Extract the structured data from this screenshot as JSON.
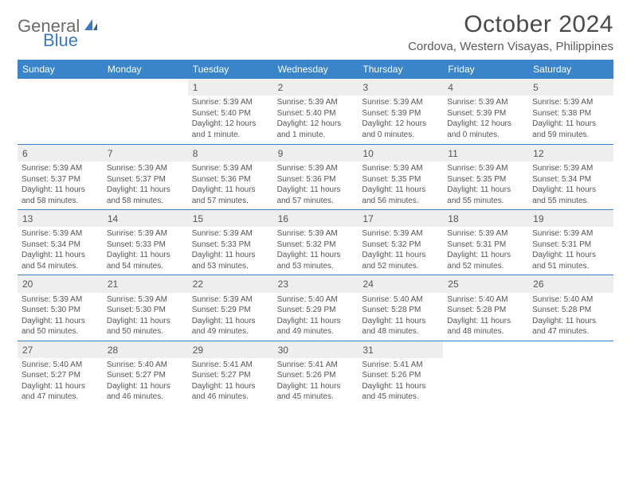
{
  "logo": {
    "general": "General",
    "blue": "Blue"
  },
  "title": "October 2024",
  "location": "Cordova, Western Visayas, Philippines",
  "colors": {
    "header_bg": "#3a85c9",
    "header_text": "#ffffff",
    "week_border": "#3a85c9",
    "daynum_bg": "#eeeeee",
    "body_text": "#555555",
    "logo_gray": "#6a6a6a",
    "logo_blue": "#3a7bbf"
  },
  "day_names": [
    "Sunday",
    "Monday",
    "Tuesday",
    "Wednesday",
    "Thursday",
    "Friday",
    "Saturday"
  ],
  "weeks": [
    [
      {
        "day": "",
        "sunrise": "",
        "sunset": "",
        "daylight": ""
      },
      {
        "day": "",
        "sunrise": "",
        "sunset": "",
        "daylight": ""
      },
      {
        "day": "1",
        "sunrise": "Sunrise: 5:39 AM",
        "sunset": "Sunset: 5:40 PM",
        "daylight": "Daylight: 12 hours and 1 minute."
      },
      {
        "day": "2",
        "sunrise": "Sunrise: 5:39 AM",
        "sunset": "Sunset: 5:40 PM",
        "daylight": "Daylight: 12 hours and 1 minute."
      },
      {
        "day": "3",
        "sunrise": "Sunrise: 5:39 AM",
        "sunset": "Sunset: 5:39 PM",
        "daylight": "Daylight: 12 hours and 0 minutes."
      },
      {
        "day": "4",
        "sunrise": "Sunrise: 5:39 AM",
        "sunset": "Sunset: 5:39 PM",
        "daylight": "Daylight: 12 hours and 0 minutes."
      },
      {
        "day": "5",
        "sunrise": "Sunrise: 5:39 AM",
        "sunset": "Sunset: 5:38 PM",
        "daylight": "Daylight: 11 hours and 59 minutes."
      }
    ],
    [
      {
        "day": "6",
        "sunrise": "Sunrise: 5:39 AM",
        "sunset": "Sunset: 5:37 PM",
        "daylight": "Daylight: 11 hours and 58 minutes."
      },
      {
        "day": "7",
        "sunrise": "Sunrise: 5:39 AM",
        "sunset": "Sunset: 5:37 PM",
        "daylight": "Daylight: 11 hours and 58 minutes."
      },
      {
        "day": "8",
        "sunrise": "Sunrise: 5:39 AM",
        "sunset": "Sunset: 5:36 PM",
        "daylight": "Daylight: 11 hours and 57 minutes."
      },
      {
        "day": "9",
        "sunrise": "Sunrise: 5:39 AM",
        "sunset": "Sunset: 5:36 PM",
        "daylight": "Daylight: 11 hours and 57 minutes."
      },
      {
        "day": "10",
        "sunrise": "Sunrise: 5:39 AM",
        "sunset": "Sunset: 5:35 PM",
        "daylight": "Daylight: 11 hours and 56 minutes."
      },
      {
        "day": "11",
        "sunrise": "Sunrise: 5:39 AM",
        "sunset": "Sunset: 5:35 PM",
        "daylight": "Daylight: 11 hours and 55 minutes."
      },
      {
        "day": "12",
        "sunrise": "Sunrise: 5:39 AM",
        "sunset": "Sunset: 5:34 PM",
        "daylight": "Daylight: 11 hours and 55 minutes."
      }
    ],
    [
      {
        "day": "13",
        "sunrise": "Sunrise: 5:39 AM",
        "sunset": "Sunset: 5:34 PM",
        "daylight": "Daylight: 11 hours and 54 minutes."
      },
      {
        "day": "14",
        "sunrise": "Sunrise: 5:39 AM",
        "sunset": "Sunset: 5:33 PM",
        "daylight": "Daylight: 11 hours and 54 minutes."
      },
      {
        "day": "15",
        "sunrise": "Sunrise: 5:39 AM",
        "sunset": "Sunset: 5:33 PM",
        "daylight": "Daylight: 11 hours and 53 minutes."
      },
      {
        "day": "16",
        "sunrise": "Sunrise: 5:39 AM",
        "sunset": "Sunset: 5:32 PM",
        "daylight": "Daylight: 11 hours and 53 minutes."
      },
      {
        "day": "17",
        "sunrise": "Sunrise: 5:39 AM",
        "sunset": "Sunset: 5:32 PM",
        "daylight": "Daylight: 11 hours and 52 minutes."
      },
      {
        "day": "18",
        "sunrise": "Sunrise: 5:39 AM",
        "sunset": "Sunset: 5:31 PM",
        "daylight": "Daylight: 11 hours and 52 minutes."
      },
      {
        "day": "19",
        "sunrise": "Sunrise: 5:39 AM",
        "sunset": "Sunset: 5:31 PM",
        "daylight": "Daylight: 11 hours and 51 minutes."
      }
    ],
    [
      {
        "day": "20",
        "sunrise": "Sunrise: 5:39 AM",
        "sunset": "Sunset: 5:30 PM",
        "daylight": "Daylight: 11 hours and 50 minutes."
      },
      {
        "day": "21",
        "sunrise": "Sunrise: 5:39 AM",
        "sunset": "Sunset: 5:30 PM",
        "daylight": "Daylight: 11 hours and 50 minutes."
      },
      {
        "day": "22",
        "sunrise": "Sunrise: 5:39 AM",
        "sunset": "Sunset: 5:29 PM",
        "daylight": "Daylight: 11 hours and 49 minutes."
      },
      {
        "day": "23",
        "sunrise": "Sunrise: 5:40 AM",
        "sunset": "Sunset: 5:29 PM",
        "daylight": "Daylight: 11 hours and 49 minutes."
      },
      {
        "day": "24",
        "sunrise": "Sunrise: 5:40 AM",
        "sunset": "Sunset: 5:28 PM",
        "daylight": "Daylight: 11 hours and 48 minutes."
      },
      {
        "day": "25",
        "sunrise": "Sunrise: 5:40 AM",
        "sunset": "Sunset: 5:28 PM",
        "daylight": "Daylight: 11 hours and 48 minutes."
      },
      {
        "day": "26",
        "sunrise": "Sunrise: 5:40 AM",
        "sunset": "Sunset: 5:28 PM",
        "daylight": "Daylight: 11 hours and 47 minutes."
      }
    ],
    [
      {
        "day": "27",
        "sunrise": "Sunrise: 5:40 AM",
        "sunset": "Sunset: 5:27 PM",
        "daylight": "Daylight: 11 hours and 47 minutes."
      },
      {
        "day": "28",
        "sunrise": "Sunrise: 5:40 AM",
        "sunset": "Sunset: 5:27 PM",
        "daylight": "Daylight: 11 hours and 46 minutes."
      },
      {
        "day": "29",
        "sunrise": "Sunrise: 5:41 AM",
        "sunset": "Sunset: 5:27 PM",
        "daylight": "Daylight: 11 hours and 46 minutes."
      },
      {
        "day": "30",
        "sunrise": "Sunrise: 5:41 AM",
        "sunset": "Sunset: 5:26 PM",
        "daylight": "Daylight: 11 hours and 45 minutes."
      },
      {
        "day": "31",
        "sunrise": "Sunrise: 5:41 AM",
        "sunset": "Sunset: 5:26 PM",
        "daylight": "Daylight: 11 hours and 45 minutes."
      },
      {
        "day": "",
        "sunrise": "",
        "sunset": "",
        "daylight": ""
      },
      {
        "day": "",
        "sunrise": "",
        "sunset": "",
        "daylight": ""
      }
    ]
  ]
}
